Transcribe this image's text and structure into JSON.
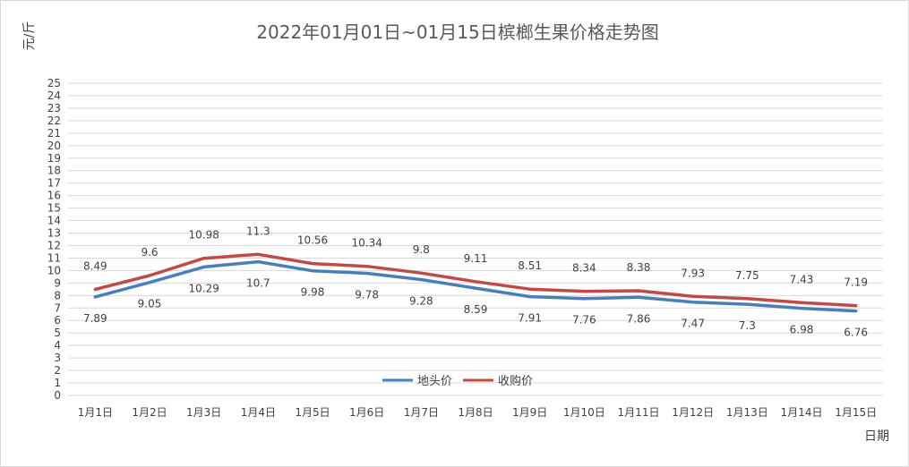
{
  "chart_data": {
    "type": "line",
    "title": "2022年01月01日~01月15日槟榔生果价格走势图",
    "ylabel": "元/斤",
    "xlabel": "日期",
    "ylim": [
      0,
      25
    ],
    "yticks": [
      "0",
      "1",
      "2",
      "3",
      "4",
      "5",
      "6",
      "7",
      "8",
      "9",
      "10",
      "11",
      "12",
      "13",
      "14",
      "15",
      "16",
      "17",
      "18",
      "19",
      "20",
      "21",
      "22",
      "23",
      "24",
      "25"
    ],
    "grid": true,
    "legend_position": "bottom-center",
    "categories": [
      "1月1日",
      "1月2日",
      "1月3日",
      "1月4日",
      "1月5日",
      "1月6日",
      "1月7日",
      "1月8日",
      "1月9日",
      "1月10日",
      "1月11日",
      "1月12日",
      "1月13日",
      "1月14日",
      "1月15日"
    ],
    "series": [
      {
        "name": "地头价",
        "color": "#4a7ebb",
        "values": [
          7.89,
          9.05,
          10.29,
          10.7,
          9.98,
          9.78,
          9.28,
          8.59,
          7.91,
          7.76,
          7.86,
          7.47,
          7.3,
          6.98,
          6.76
        ],
        "labels": [
          "7.89",
          "9.05",
          "10.29",
          "10.7",
          "9.98",
          "9.78",
          "9.28",
          "8.59",
          "7.91",
          "7.76",
          "7.86",
          "7.47",
          "7.3",
          "6.98",
          "6.76"
        ]
      },
      {
        "name": "收购价",
        "color": "#be4b48",
        "values": [
          8.49,
          9.6,
          10.98,
          11.3,
          10.56,
          10.34,
          9.8,
          9.11,
          8.51,
          8.34,
          8.38,
          7.93,
          7.75,
          7.43,
          7.19
        ],
        "labels": [
          "8.49",
          "9.6",
          "10.98",
          "11.3",
          "10.56",
          "10.34",
          "9.8",
          "9.11",
          "8.51",
          "8.34",
          "8.38",
          "7.93",
          "7.75",
          "7.43",
          "7.19"
        ]
      }
    ]
  }
}
